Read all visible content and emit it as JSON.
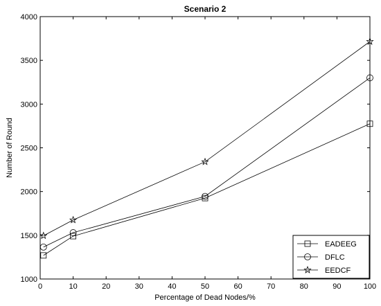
{
  "chart_data": {
    "type": "line",
    "title": "Scenario 2",
    "xlabel": "Percentage of Dead Nodes/%",
    "ylabel": "Number of Round",
    "x": [
      1,
      10,
      50,
      100
    ],
    "series": [
      {
        "name": "EADEEG",
        "marker": "square",
        "values": [
          1270,
          1490,
          1925,
          2775
        ]
      },
      {
        "name": "DFLC",
        "marker": "circle",
        "values": [
          1365,
          1530,
          1945,
          3300
        ]
      },
      {
        "name": "EEDCF",
        "marker": "star",
        "values": [
          1495,
          1675,
          2340,
          3715
        ]
      }
    ],
    "xlim": [
      0,
      100
    ],
    "ylim": [
      1000,
      4000
    ],
    "xticks": [
      0,
      10,
      20,
      30,
      40,
      50,
      60,
      70,
      80,
      90,
      100
    ],
    "yticks": [
      1000,
      1500,
      2000,
      2500,
      3000,
      3500,
      4000
    ],
    "grid": false,
    "legend_position": "bottom-right"
  }
}
